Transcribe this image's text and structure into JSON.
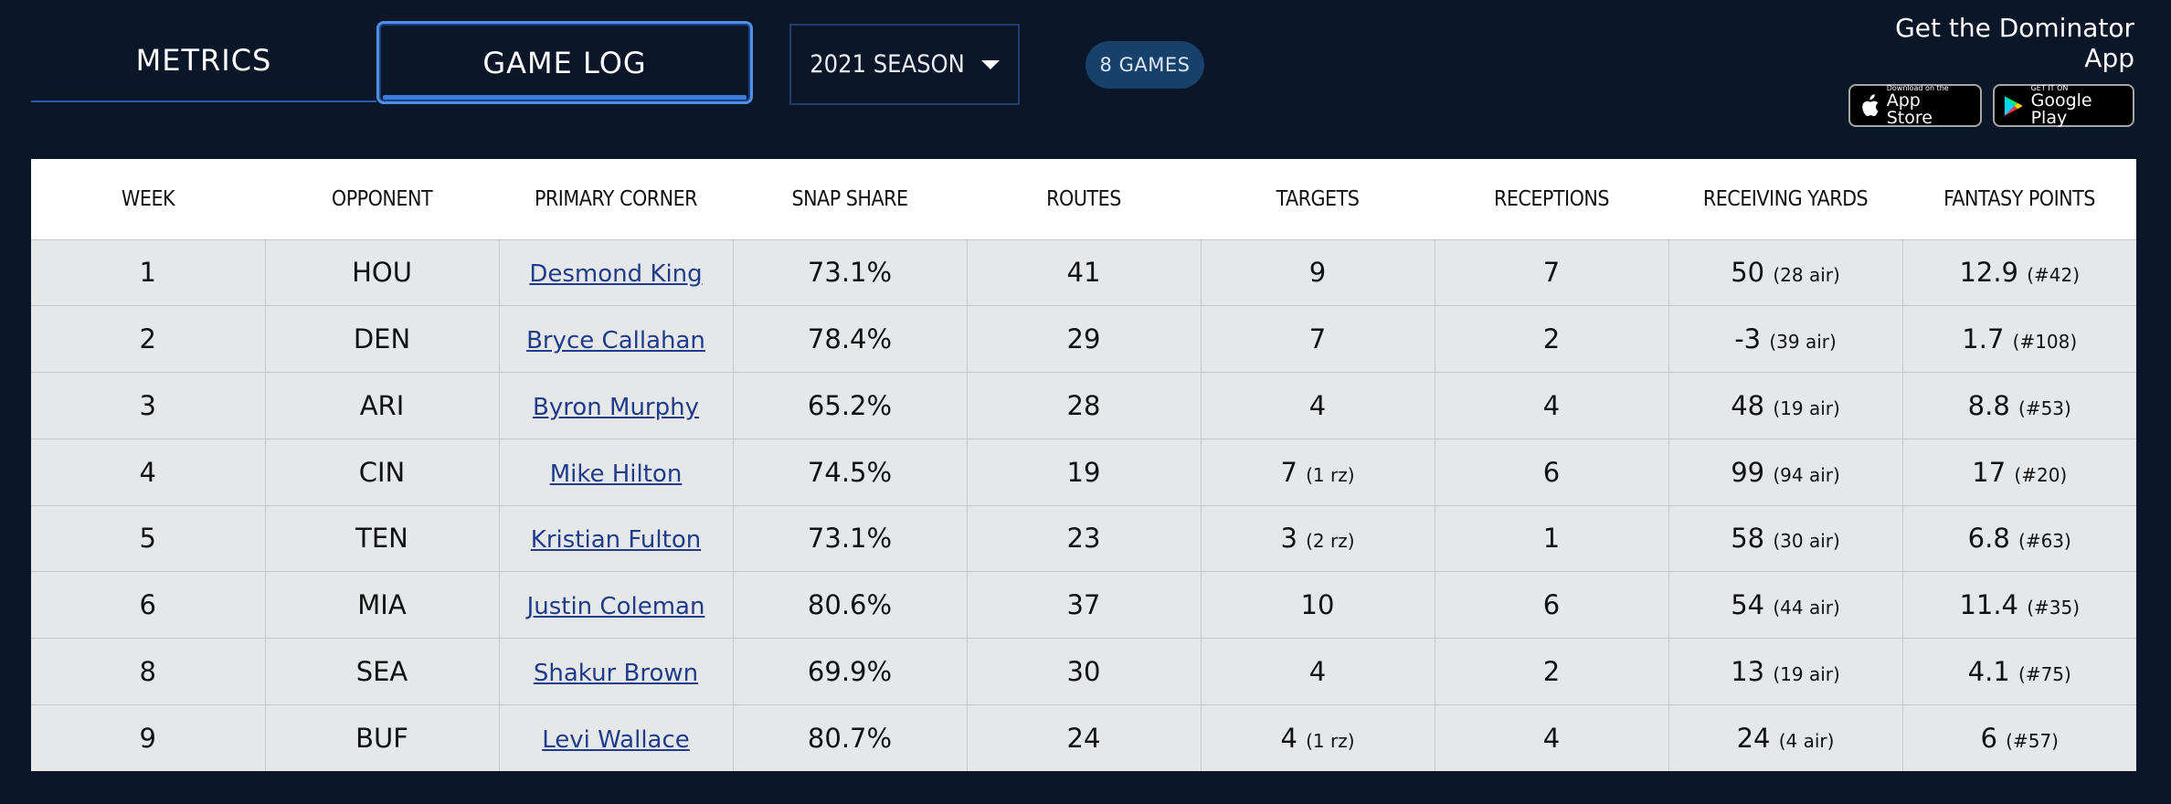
{
  "tabs": [
    {
      "label": "METRICS"
    },
    {
      "label": "GAME LOG"
    }
  ],
  "season_select": {
    "label": "2021 SEASON"
  },
  "games_badge": "8 GAMES",
  "app_promo": {
    "title": "Get the Dominator App",
    "apple": {
      "small": "Download on the",
      "big": "App Store"
    },
    "google": {
      "small": "GET IT ON",
      "big": "Google Play"
    }
  },
  "table": {
    "headers": [
      "WEEK",
      "OPPONENT",
      "PRIMARY CORNER",
      "SNAP SHARE",
      "ROUTES",
      "TARGETS",
      "RECEPTIONS",
      "RECEIVING YARDS",
      "FANTASY POINTS"
    ],
    "rows": [
      {
        "week": "1",
        "opp": "HOU",
        "corner": "Desmond King",
        "snap": "73.1%",
        "routes": "41",
        "targets": "9",
        "targets_sub": "",
        "rec": "7",
        "yds": "50",
        "yds_sub": "(28 air)",
        "fp": "12.9",
        "fp_sub": "(#42)"
      },
      {
        "week": "2",
        "opp": "DEN",
        "corner": "Bryce Callahan",
        "snap": "78.4%",
        "routes": "29",
        "targets": "7",
        "targets_sub": "",
        "rec": "2",
        "yds": "-3",
        "yds_sub": "(39 air)",
        "fp": "1.7",
        "fp_sub": "(#108)"
      },
      {
        "week": "3",
        "opp": "ARI",
        "corner": "Byron Murphy",
        "snap": "65.2%",
        "routes": "28",
        "targets": "4",
        "targets_sub": "",
        "rec": "4",
        "yds": "48",
        "yds_sub": "(19 air)",
        "fp": "8.8",
        "fp_sub": "(#53)"
      },
      {
        "week": "4",
        "opp": "CIN",
        "corner": "Mike Hilton",
        "snap": "74.5%",
        "routes": "19",
        "targets": "7",
        "targets_sub": "(1 rz)",
        "rec": "6",
        "yds": "99",
        "yds_sub": "(94 air)",
        "fp": "17",
        "fp_sub": "(#20)"
      },
      {
        "week": "5",
        "opp": "TEN",
        "corner": "Kristian Fulton",
        "snap": "73.1%",
        "routes": "23",
        "targets": "3",
        "targets_sub": "(2 rz)",
        "rec": "1",
        "yds": "58",
        "yds_sub": "(30 air)",
        "fp": "6.8",
        "fp_sub": "(#63)"
      },
      {
        "week": "6",
        "opp": "MIA",
        "corner": "Justin Coleman",
        "snap": "80.6%",
        "routes": "37",
        "targets": "10",
        "targets_sub": "",
        "rec": "6",
        "yds": "54",
        "yds_sub": "(44 air)",
        "fp": "11.4",
        "fp_sub": "(#35)"
      },
      {
        "week": "8",
        "opp": "SEA",
        "corner": "Shakur Brown",
        "snap": "69.9%",
        "routes": "30",
        "targets": "4",
        "targets_sub": "",
        "rec": "2",
        "yds": "13",
        "yds_sub": "(19 air)",
        "fp": "4.1",
        "fp_sub": "(#75)"
      },
      {
        "week": "9",
        "opp": "BUF",
        "corner": "Levi Wallace",
        "snap": "80.7%",
        "routes": "24",
        "targets": "4",
        "targets_sub": "(1 rz)",
        "rec": "4",
        "yds": "24",
        "yds_sub": "(4 air)",
        "fp": "6",
        "fp_sub": "(#57)"
      }
    ]
  },
  "colors": {
    "page_bg": "#0b1628",
    "accent": "#3a7de0",
    "badge_bg": "#17406b",
    "row_bg": "#e6e7e9",
    "link": "#1f3c8a"
  },
  "icons": {
    "caret": "chevron-down-icon",
    "apple": "apple-logo-icon",
    "google": "google-play-icon"
  }
}
